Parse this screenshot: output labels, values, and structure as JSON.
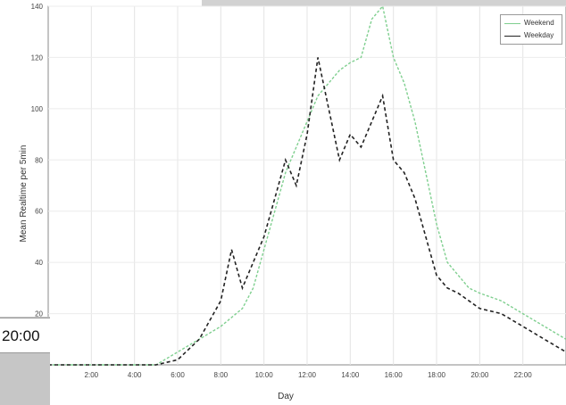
{
  "clock": "20:00",
  "chart_data": {
    "type": "line",
    "title": "",
    "xlabel": "Day",
    "ylabel": "Mean Realtime per 5min",
    "xlim": [
      0,
      1440
    ],
    "ylim": [
      0,
      140
    ],
    "x_tick_labels": [
      "2:00",
      "4:00",
      "6:00",
      "8:00",
      "10:00",
      "12:00",
      "14:00",
      "16:00",
      "18:00",
      "20:00",
      "22:00"
    ],
    "x_tick_values": [
      120,
      240,
      360,
      480,
      600,
      720,
      840,
      960,
      1080,
      1200,
      1320
    ],
    "y_tick_labels": [
      "20",
      "40",
      "60",
      "80",
      "100",
      "120",
      "140"
    ],
    "y_tick_values": [
      20,
      40,
      60,
      80,
      100,
      120,
      140
    ],
    "legend_position": "top-right",
    "grid": true,
    "series": [
      {
        "name": "Weekend",
        "color": "#7fcf8f",
        "x": [
          0,
          30,
          60,
          120,
          180,
          240,
          300,
          360,
          420,
          480,
          540,
          570,
          600,
          630,
          660,
          690,
          720,
          750,
          780,
          810,
          840,
          870,
          900,
          930,
          960,
          990,
          1020,
          1050,
          1080,
          1110,
          1140,
          1170,
          1200,
          1260,
          1320,
          1380,
          1440
        ],
        "y": [
          0,
          0,
          0,
          0,
          0,
          0,
          0,
          5,
          10,
          15,
          22,
          30,
          45,
          60,
          75,
          85,
          95,
          105,
          110,
          115,
          118,
          120,
          135,
          140,
          120,
          110,
          95,
          75,
          55,
          40,
          35,
          30,
          28,
          25,
          20,
          15,
          10
        ]
      },
      {
        "name": "Weekday",
        "color": "#222222",
        "x": [
          0,
          30,
          60,
          120,
          180,
          240,
          300,
          360,
          420,
          480,
          510,
          540,
          570,
          600,
          630,
          660,
          690,
          720,
          750,
          780,
          810,
          840,
          870,
          900,
          930,
          960,
          990,
          1020,
          1050,
          1080,
          1110,
          1140,
          1170,
          1200,
          1260,
          1320,
          1380,
          1440
        ],
        "y": [
          0,
          0,
          0,
          0,
          0,
          0,
          0,
          2,
          10,
          25,
          45,
          30,
          40,
          50,
          65,
          80,
          70,
          90,
          120,
          100,
          80,
          90,
          85,
          95,
          105,
          80,
          75,
          65,
          50,
          35,
          30,
          28,
          25,
          22,
          20,
          15,
          10,
          5
        ]
      }
    ]
  }
}
